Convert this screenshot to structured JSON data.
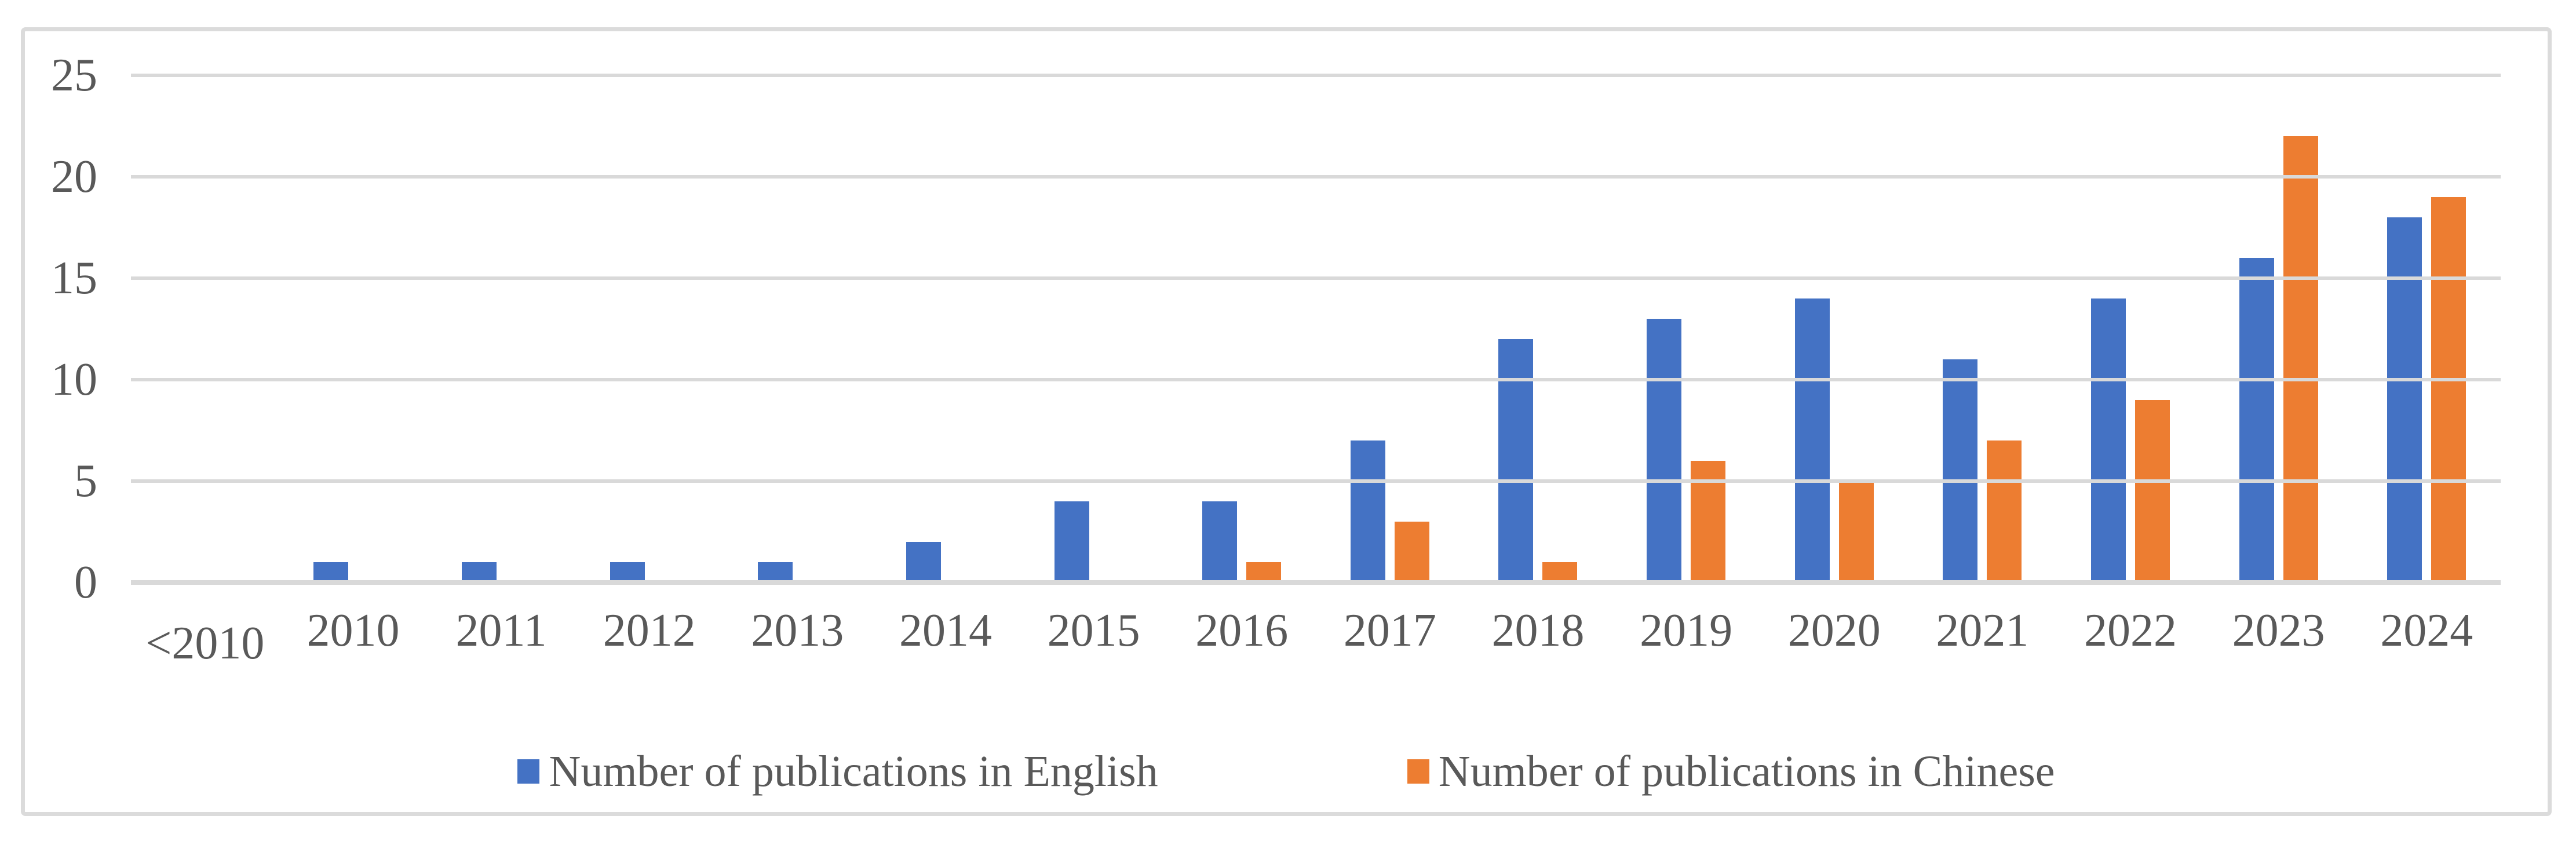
{
  "chart_data": {
    "type": "bar",
    "title": "",
    "categories": [
      "<2010",
      "2010",
      "2011",
      "2012",
      "2013",
      "2014",
      "2015",
      "2016",
      "2017",
      "2018",
      "2019",
      "2020",
      "2021",
      "2022",
      "2023",
      "2024"
    ],
    "series": [
      {
        "name": "Number of publications in English",
        "color": "#4472C4",
        "values": [
          0,
          1,
          1,
          1,
          1,
          2,
          4,
          4,
          7,
          12,
          13,
          14,
          11,
          14,
          16,
          18
        ]
      },
      {
        "name": "Number of publications in Chinese",
        "color": "#ED7D31",
        "values": [
          0,
          0,
          0,
          0,
          0,
          0,
          0,
          1,
          3,
          1,
          6,
          5,
          7,
          9,
          22,
          19
        ]
      }
    ],
    "xlabel": "",
    "ylabel": "",
    "y_ticks": [
      0,
      5,
      10,
      15,
      20,
      25
    ],
    "ylim": [
      0,
      25
    ],
    "grid": true,
    "legend_position": "bottom",
    "staggered_first_x_label": true,
    "colors": {
      "gridline": "#D9D9D9",
      "axis_text": "#595959",
      "frame_border": "#DBDBDB",
      "background": "#FFFFFF"
    }
  }
}
